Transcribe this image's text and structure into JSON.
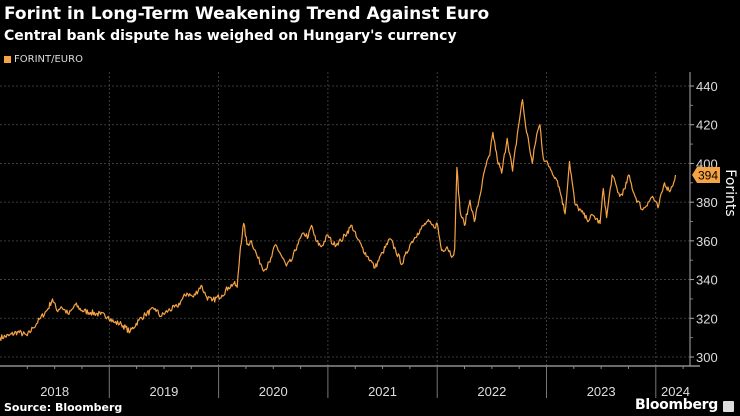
{
  "title": "Forint in Long-Term Weakening Trend Against Euro",
  "subtitle": "Central bank dispute has weighed on Hungary's currency",
  "source": "Source: Bloomberg",
  "brand": "Bloomberg",
  "colors": {
    "series": "#f5a343",
    "background": "#000000",
    "grid": "#555555"
  },
  "chart_data": {
    "type": "line",
    "title": "Forint in Long-Term Weakening Trend Against Euro",
    "subtitle": "Central bank dispute has weighed on Hungary's currency",
    "ylabel": "Forints",
    "xlabel": "",
    "ylim": [
      295,
      445
    ],
    "xlim": [
      2018.0,
      2024.32
    ],
    "yticks": [
      300,
      320,
      340,
      360,
      380,
      400,
      420,
      440
    ],
    "xtick_labels": [
      "2018",
      "2019",
      "2020",
      "2021",
      "2022",
      "2023",
      "2024"
    ],
    "grid": true,
    "y_axis_side": "right",
    "legend_placement": "top-left",
    "last_value_label": "394",
    "series": [
      {
        "name": "FORINT/EURO",
        "color": "#f5a343",
        "points": [
          [
            2018.0,
            310
          ],
          [
            2018.08,
            311
          ],
          [
            2018.16,
            313
          ],
          [
            2018.25,
            311
          ],
          [
            2018.3,
            315
          ],
          [
            2018.37,
            320
          ],
          [
            2018.44,
            325
          ],
          [
            2018.48,
            330
          ],
          [
            2018.52,
            324
          ],
          [
            2018.56,
            326
          ],
          [
            2018.63,
            322
          ],
          [
            2018.69,
            327
          ],
          [
            2018.75,
            324
          ],
          [
            2018.83,
            323
          ],
          [
            2018.92,
            322
          ],
          [
            2018.99,
            321
          ],
          [
            2019.04,
            318
          ],
          [
            2019.11,
            317
          ],
          [
            2019.19,
            313
          ],
          [
            2019.27,
            319
          ],
          [
            2019.33,
            322
          ],
          [
            2019.42,
            325
          ],
          [
            2019.47,
            321
          ],
          [
            2019.54,
            324
          ],
          [
            2019.62,
            326
          ],
          [
            2019.67,
            330
          ],
          [
            2019.71,
            333
          ],
          [
            2019.77,
            331
          ],
          [
            2019.84,
            337
          ],
          [
            2019.89,
            331
          ],
          [
            2019.94,
            329
          ],
          [
            2020.03,
            332
          ],
          [
            2020.09,
            336
          ],
          [
            2020.14,
            338
          ],
          [
            2020.17,
            336
          ],
          [
            2020.2,
            357
          ],
          [
            2020.23,
            369
          ],
          [
            2020.26,
            358
          ],
          [
            2020.3,
            360
          ],
          [
            2020.36,
            351
          ],
          [
            2020.42,
            345
          ],
          [
            2020.47,
            349
          ],
          [
            2020.52,
            358
          ],
          [
            2020.56,
            354
          ],
          [
            2020.62,
            347
          ],
          [
            2020.67,
            350
          ],
          [
            2020.72,
            358
          ],
          [
            2020.78,
            364
          ],
          [
            2020.82,
            362
          ],
          [
            2020.85,
            368
          ],
          [
            2020.89,
            360
          ],
          [
            2020.94,
            357
          ],
          [
            2021.0,
            363
          ],
          [
            2021.05,
            358
          ],
          [
            2021.12,
            360
          ],
          [
            2021.22,
            368
          ],
          [
            2021.26,
            362
          ],
          [
            2021.31,
            357
          ],
          [
            2021.36,
            352
          ],
          [
            2021.39,
            350
          ],
          [
            2021.43,
            346
          ],
          [
            2021.5,
            354
          ],
          [
            2021.57,
            361
          ],
          [
            2021.62,
            355
          ],
          [
            2021.68,
            348
          ],
          [
            2021.75,
            358
          ],
          [
            2021.82,
            364
          ],
          [
            2021.91,
            370
          ],
          [
            2021.97,
            367
          ],
          [
            2022.0,
            369
          ],
          [
            2022.04,
            355
          ],
          [
            2022.09,
            357
          ],
          [
            2022.14,
            352
          ],
          [
            2022.16,
            356
          ],
          [
            2022.18,
            398
          ],
          [
            2022.21,
            375
          ],
          [
            2022.25,
            368
          ],
          [
            2022.3,
            381
          ],
          [
            2022.34,
            370
          ],
          [
            2022.39,
            383
          ],
          [
            2022.44,
            398
          ],
          [
            2022.48,
            404
          ],
          [
            2022.51,
            416
          ],
          [
            2022.55,
            402
          ],
          [
            2022.59,
            395
          ],
          [
            2022.64,
            413
          ],
          [
            2022.69,
            396
          ],
          [
            2022.74,
            418
          ],
          [
            2022.78,
            433
          ],
          [
            2022.81,
            419
          ],
          [
            2022.84,
            410
          ],
          [
            2022.87,
            400
          ],
          [
            2022.91,
            415
          ],
          [
            2022.94,
            420
          ],
          [
            2022.97,
            403
          ],
          [
            2023.03,
            398
          ],
          [
            2023.1,
            391
          ],
          [
            2023.14,
            382
          ],
          [
            2023.17,
            374
          ],
          [
            2023.21,
            401
          ],
          [
            2023.26,
            379
          ],
          [
            2023.32,
            375
          ],
          [
            2023.37,
            371
          ],
          [
            2023.43,
            373
          ],
          [
            2023.49,
            369
          ],
          [
            2023.52,
            387
          ],
          [
            2023.55,
            372
          ],
          [
            2023.6,
            394
          ],
          [
            2023.67,
            383
          ],
          [
            2023.72,
            387
          ],
          [
            2023.75,
            394
          ],
          [
            2023.81,
            383
          ],
          [
            2023.88,
            376
          ],
          [
            2023.93,
            380
          ],
          [
            2023.97,
            383
          ],
          [
            2024.02,
            377
          ],
          [
            2024.08,
            390
          ],
          [
            2024.12,
            386
          ],
          [
            2024.15,
            388
          ],
          [
            2024.18,
            394
          ]
        ]
      }
    ]
  }
}
